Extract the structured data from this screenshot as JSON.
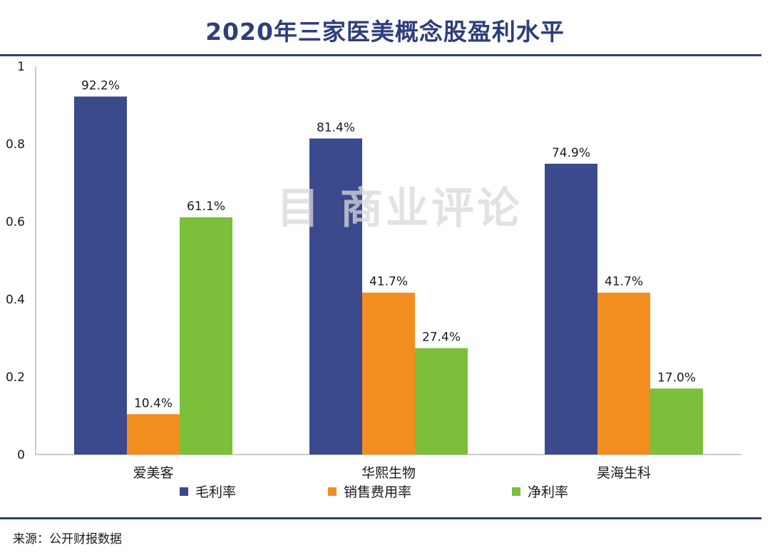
{
  "chart_data": {
    "type": "bar",
    "title": "2020年三家医美概念股盈利水平",
    "categories": [
      "爱美客",
      "华熙生物",
      "昊海生科"
    ],
    "series": [
      {
        "name": "毛利率",
        "color": "#3b4a8c",
        "values": [
          0.922,
          0.814,
          0.749
        ],
        "labels": [
          "92.2%",
          "81.4%",
          "74.9%"
        ]
      },
      {
        "name": "销售费用率",
        "color": "#f28e1f",
        "values": [
          0.104,
          0.417,
          0.417
        ],
        "labels": [
          "10.4%",
          "41.7%",
          "41.7%"
        ]
      },
      {
        "name": "净利率",
        "color": "#7bbf3a",
        "values": [
          0.611,
          0.274,
          0.17
        ],
        "labels": [
          "61.1%",
          "27.4%",
          "17.0%"
        ]
      }
    ],
    "ylim": [
      0,
      1
    ],
    "yticks": [
      0,
      0.2,
      0.4,
      0.6,
      0.8,
      1
    ],
    "ytick_labels": [
      "0",
      "0.2",
      "0.4",
      "0.6",
      "0.8",
      "1"
    ],
    "xlabel": "",
    "ylabel": "",
    "legend": "bottom"
  },
  "watermark": "目 商业评论",
  "source": "来源：公开财报数据"
}
